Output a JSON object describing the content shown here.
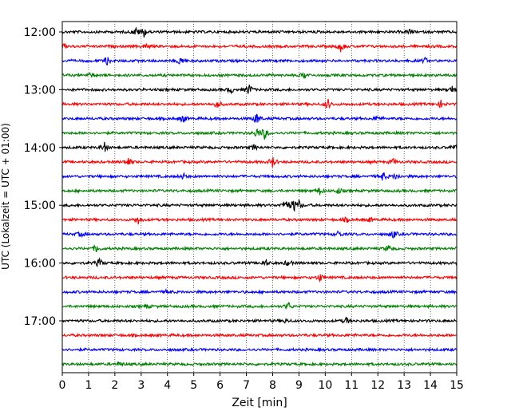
{
  "chart_data": {
    "type": "line",
    "title": "",
    "xlabel": "Zeit  [min]",
    "ylabel": "UTC (Lokalzeit = UTC + 01:00)",
    "xlim": [
      0,
      15
    ],
    "x_ticks": [
      "0",
      "1",
      "2",
      "3",
      "4",
      "5",
      "6",
      "7",
      "8",
      "9",
      "10",
      "11",
      "12",
      "13",
      "14",
      "15"
    ],
    "y_tick_labels": [
      "12:00",
      "13:00",
      "14:00",
      "15:00",
      "16:00",
      "17:00"
    ],
    "grid": "vertical dotted at each minute",
    "row_interval_min": 15,
    "row_start": "12:00",
    "row_count": 24,
    "series": [
      {
        "color": "#000000",
        "values": [
          [
            2.8,
            0.55
          ],
          [
            3.1,
            0.7
          ],
          [
            13.2,
            0.35
          ],
          [
            14.8,
            0.6
          ],
          [
            6.4,
            0.5
          ],
          [
            7.1,
            0.9
          ],
          [
            14.9,
            0.35
          ],
          [
            1.6,
            0.7
          ],
          [
            7.3,
            0.4
          ],
          [
            8.5,
            0.95
          ],
          [
            8.8,
            0.8
          ],
          [
            9.0,
            0.6
          ],
          [
            1.4,
            0.65
          ],
          [
            8.6,
            0.45
          ],
          [
            7.7,
            0.55
          ],
          [
            10.8,
            0.5
          ],
          [
            8.5,
            0.3
          ]
        ]
      },
      {
        "color": "#ff0000",
        "values": [
          [
            0.05,
            0.45
          ],
          [
            10.6,
            0.75
          ],
          [
            3.2,
            0.4
          ],
          [
            5.9,
            0.6
          ],
          [
            10.1,
            0.8
          ],
          [
            14.4,
            0.5
          ],
          [
            2.5,
            0.7
          ],
          [
            8.0,
            0.75
          ],
          [
            12.6,
            0.4
          ],
          [
            10.8,
            0.3
          ],
          [
            2.9,
            0.55
          ],
          [
            11.7,
            0.3
          ],
          [
            9.8,
            0.55
          ]
        ]
      },
      {
        "color": "#0000ff",
        "values": [
          [
            1.7,
            0.55
          ],
          [
            13.8,
            0.35
          ],
          [
            4.5,
            0.7
          ],
          [
            7.4,
            0.85
          ],
          [
            12.0,
            0.4
          ],
          [
            4.6,
            0.6
          ],
          [
            12.2,
            0.65
          ],
          [
            12.7,
            0.45
          ],
          [
            4.6,
            0.4
          ],
          [
            10.5,
            0.45
          ],
          [
            12.6,
            0.55
          ],
          [
            0.7,
            0.35
          ],
          [
            4.0,
            0.3
          ]
        ]
      },
      {
        "color": "#008000",
        "values": [
          [
            9.2,
            0.5
          ],
          [
            1.1,
            0.35
          ],
          [
            7.4,
            0.7
          ],
          [
            7.7,
            0.85
          ],
          [
            9.8,
            0.55
          ],
          [
            10.5,
            0.45
          ],
          [
            12.4,
            0.5
          ],
          [
            1.3,
            0.55
          ],
          [
            3.2,
            0.3
          ],
          [
            8.6,
            0.55
          ],
          [
            2.2,
            0.3
          ]
        ]
      }
    ]
  }
}
